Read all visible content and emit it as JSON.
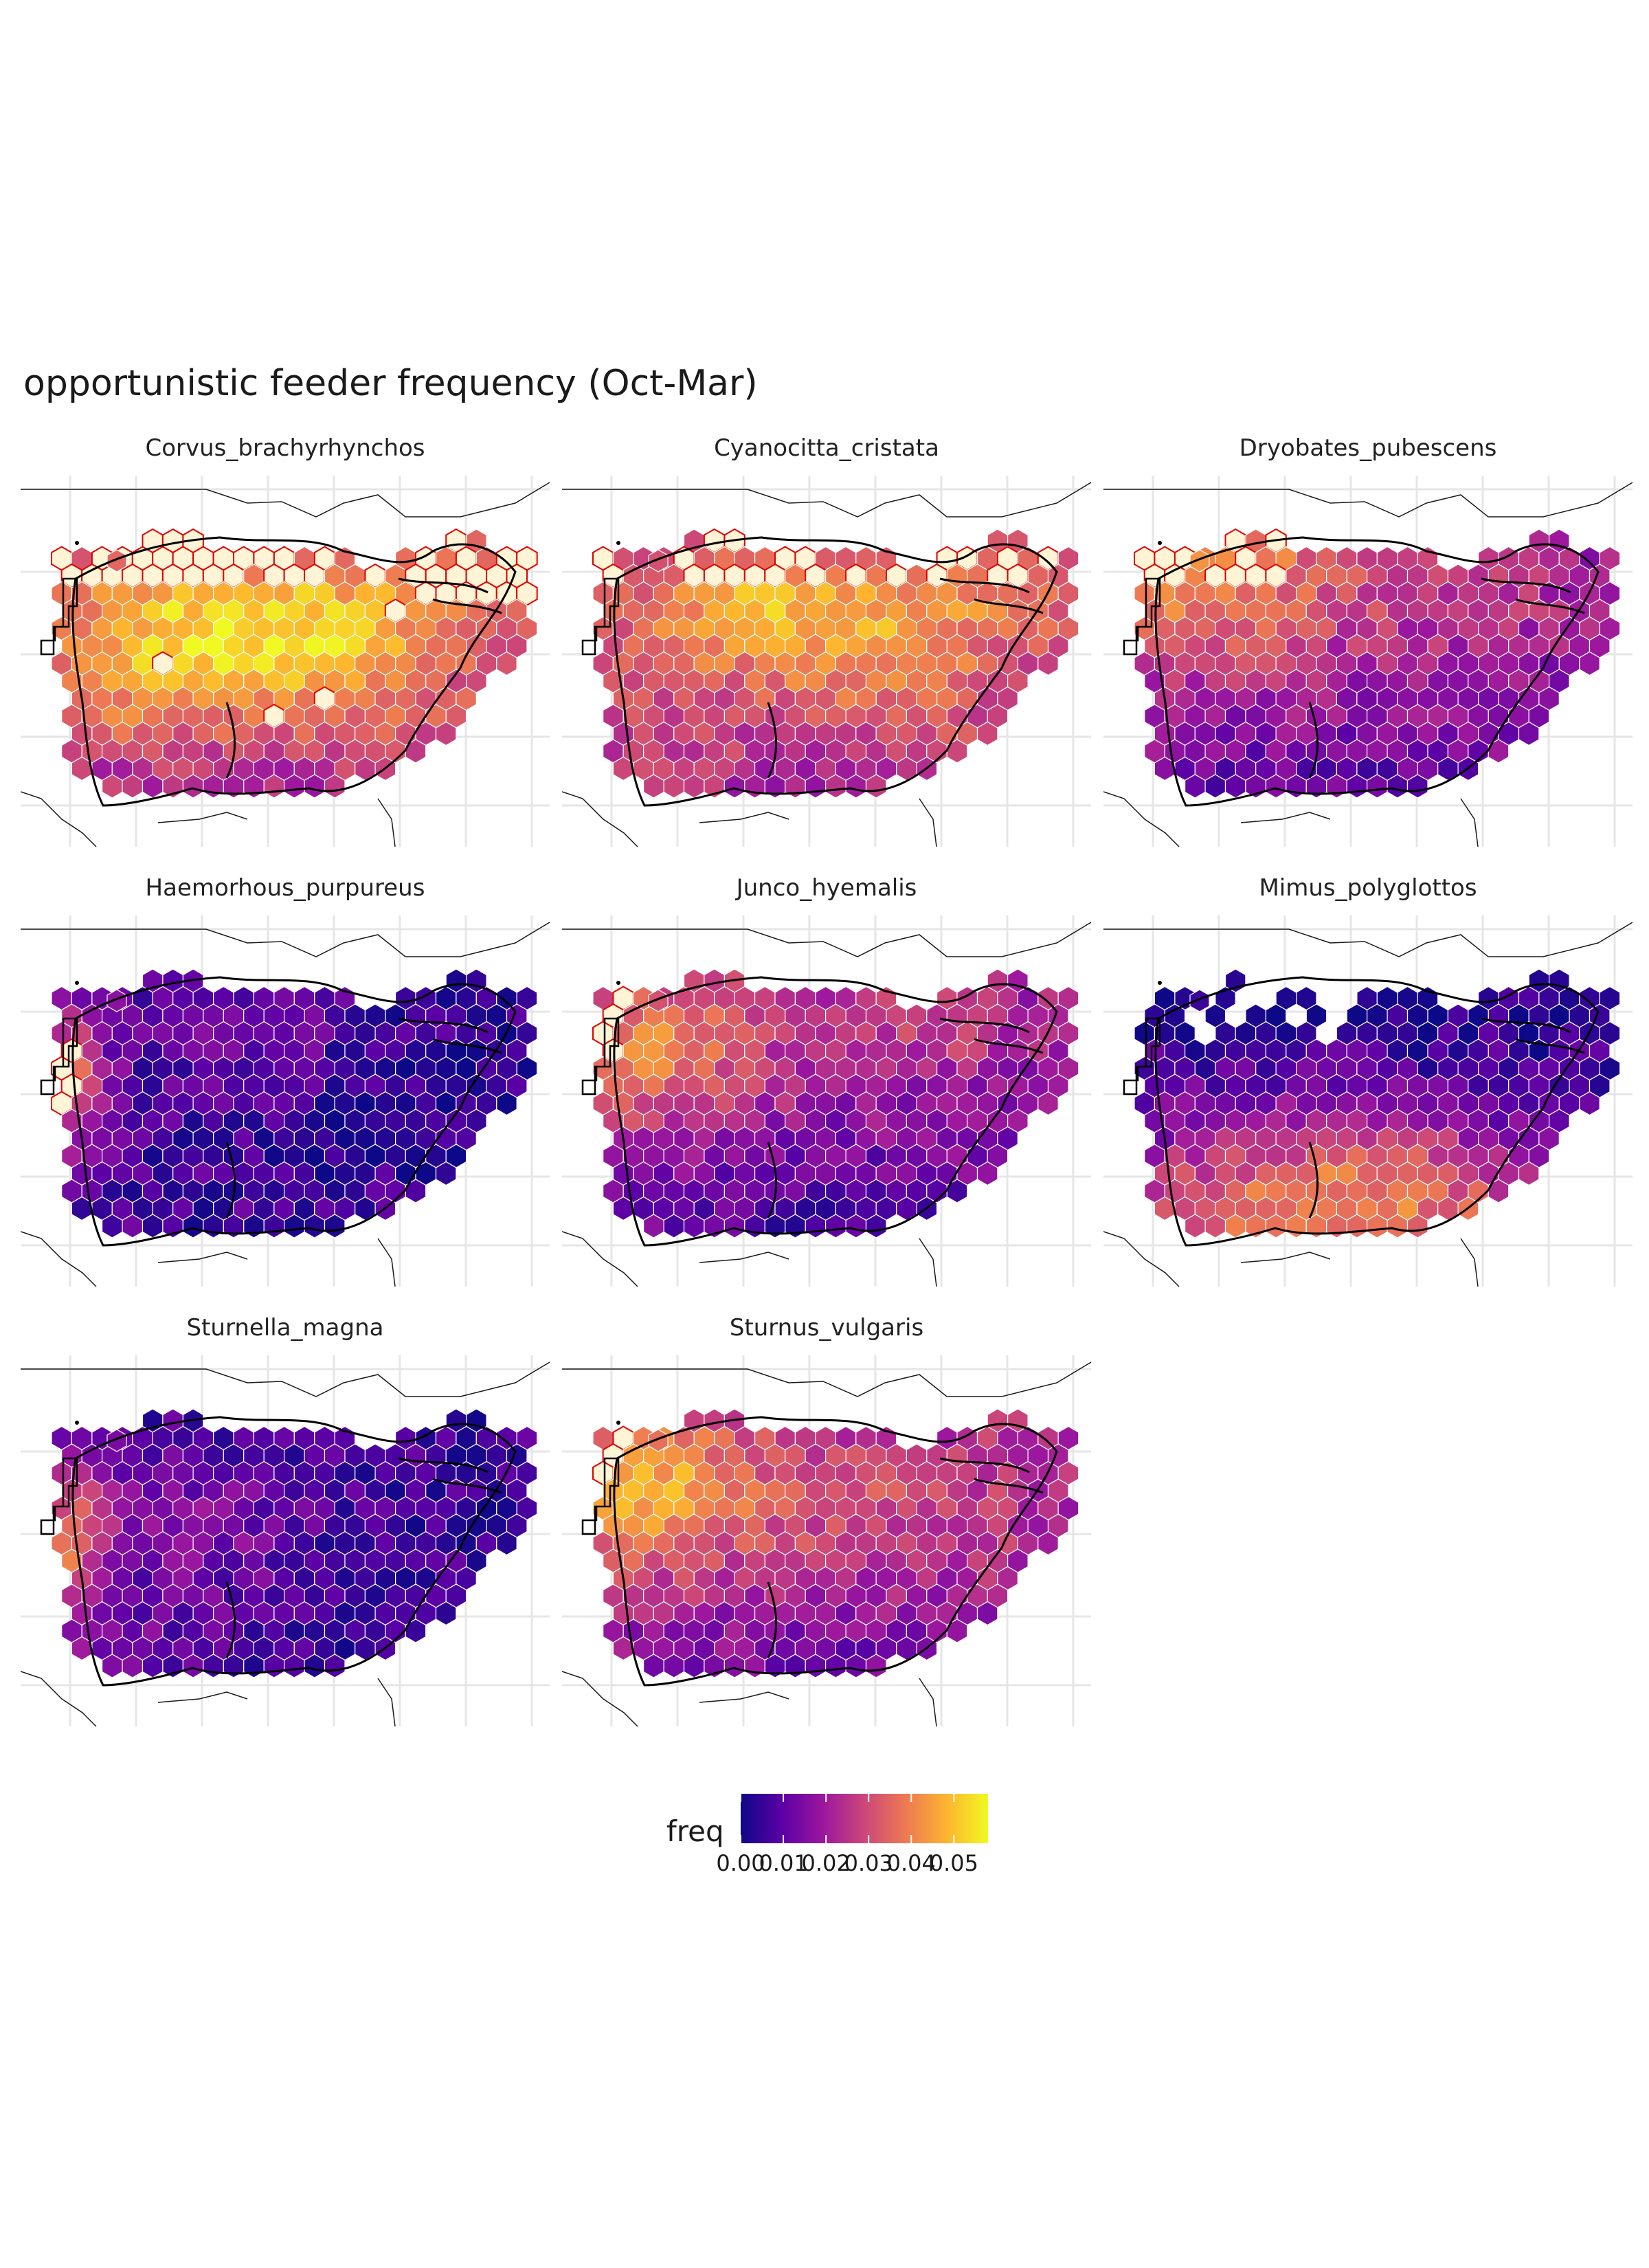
{
  "title": "opportunistic feeder frequency (Oct-Mar)",
  "colors": {
    "palette": [
      "#0d0887",
      "#5c01a6",
      "#9c179e",
      "#cc4778",
      "#ed7953",
      "#fdb42f",
      "#f0f921"
    ],
    "over_max_fill": "#fff5d6",
    "over_max_stroke": "#e00000",
    "grid": "#e6e6e6",
    "land_line": "#1a1a1a",
    "hex_stroke": "#ffffff"
  },
  "chart_data": {
    "type": "heatmap",
    "encoding": "faceted hexbin map",
    "legend": {
      "title": "freq",
      "placement": "bottom",
      "range": [
        0,
        0.058
      ],
      "ticks": [
        0.0,
        0.01,
        0.02,
        0.03,
        0.04,
        0.05
      ],
      "tick_labels": [
        "0.00",
        "0.01",
        "0.02",
        "0.03",
        "0.04",
        "0.05"
      ]
    },
    "panels": [
      {
        "species": "Corvus_brachyrhynchos",
        "typical_freq": 0.035,
        "hotspot_freq": 0.055,
        "hotspot_region": "northern tier and central plains",
        "above_legend_max_region": "northern border and Great Lakes"
      },
      {
        "species": "Cyanocitta_cristata",
        "typical_freq": 0.032,
        "hotspot_freq": 0.052,
        "hotspot_region": "northern plains and Great Lakes",
        "above_legend_max_region": "northern border and Great Lakes"
      },
      {
        "species": "Dryobates_pubescens",
        "typical_freq": 0.026,
        "hotspot_freq": 0.05,
        "hotspot_region": "northwest",
        "above_legend_max_region": "far northwest"
      },
      {
        "species": "Haemorhous_purpureus",
        "typical_freq": 0.009,
        "hotspot_freq": 0.035,
        "hotspot_region": "west coast",
        "above_legend_max_region": "west coast"
      },
      {
        "species": "Junco_hyemalis",
        "typical_freq": 0.024,
        "hotspot_freq": 0.045,
        "hotspot_region": "northwest and interior west",
        "above_legend_max_region": "northwest coast"
      },
      {
        "species": "Mimus_polyglottos",
        "typical_freq": 0.02,
        "hotspot_freq": 0.04,
        "hotspot_region": "south",
        "above_legend_max_region": "north"
      },
      {
        "species": "Sturnella_magna",
        "typical_freq": 0.012,
        "hotspot_freq": 0.04,
        "hotspot_region": "west coast",
        "above_legend_max_region": "west coast"
      },
      {
        "species": "Sturnus_vulgaris",
        "typical_freq": 0.028,
        "hotspot_freq": 0.052,
        "hotspot_region": "northwest",
        "above_legend_max_region": "northwest"
      }
    ]
  }
}
